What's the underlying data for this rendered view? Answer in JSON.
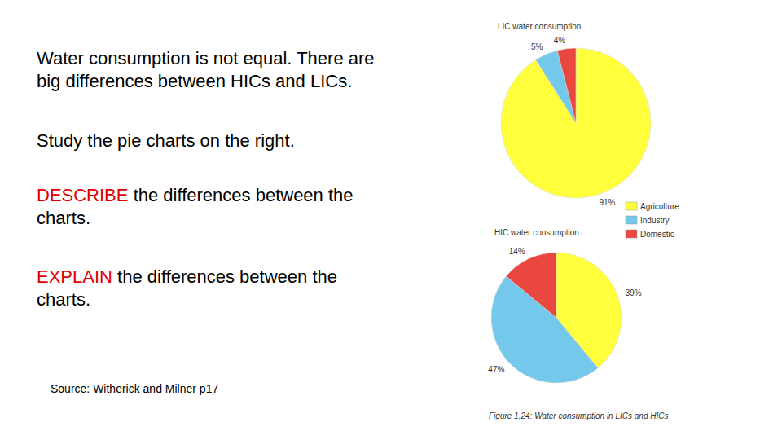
{
  "slide": {
    "paragraphs": [
      {
        "lines": [
          "Water consumption is not equal. There are",
          "big differences between HICs and LICs."
        ]
      },
      {
        "lines": [
          "Study the pie charts on the right."
        ]
      },
      {
        "keyword": "DESCRIBE",
        "lines": [
          "the differences between the",
          "charts."
        ]
      },
      {
        "keyword": "EXPLAIN",
        "lines": [
          "the differences between the",
          "charts."
        ]
      }
    ],
    "source": "Source: Witherick and Milner p17"
  },
  "chart_data": {
    "type": "pie",
    "caption": "Figure 1.24: Water consumption in LICs and HICs",
    "categories": [
      "Agriculture",
      "Industry",
      "Domestic"
    ],
    "colors": [
      "#ffff3c",
      "#74c8ec",
      "#e9473f"
    ],
    "legend": "right",
    "data_labels": true,
    "series": [
      {
        "name": "LIC water consumption",
        "values": [
          91,
          5,
          4
        ],
        "value_labels": [
          "91%",
          "5%",
          "4%"
        ]
      },
      {
        "name": "HIC water consumption",
        "values": [
          39,
          47,
          14
        ],
        "value_labels": [
          "39%",
          "47%",
          "14%"
        ]
      }
    ]
  }
}
